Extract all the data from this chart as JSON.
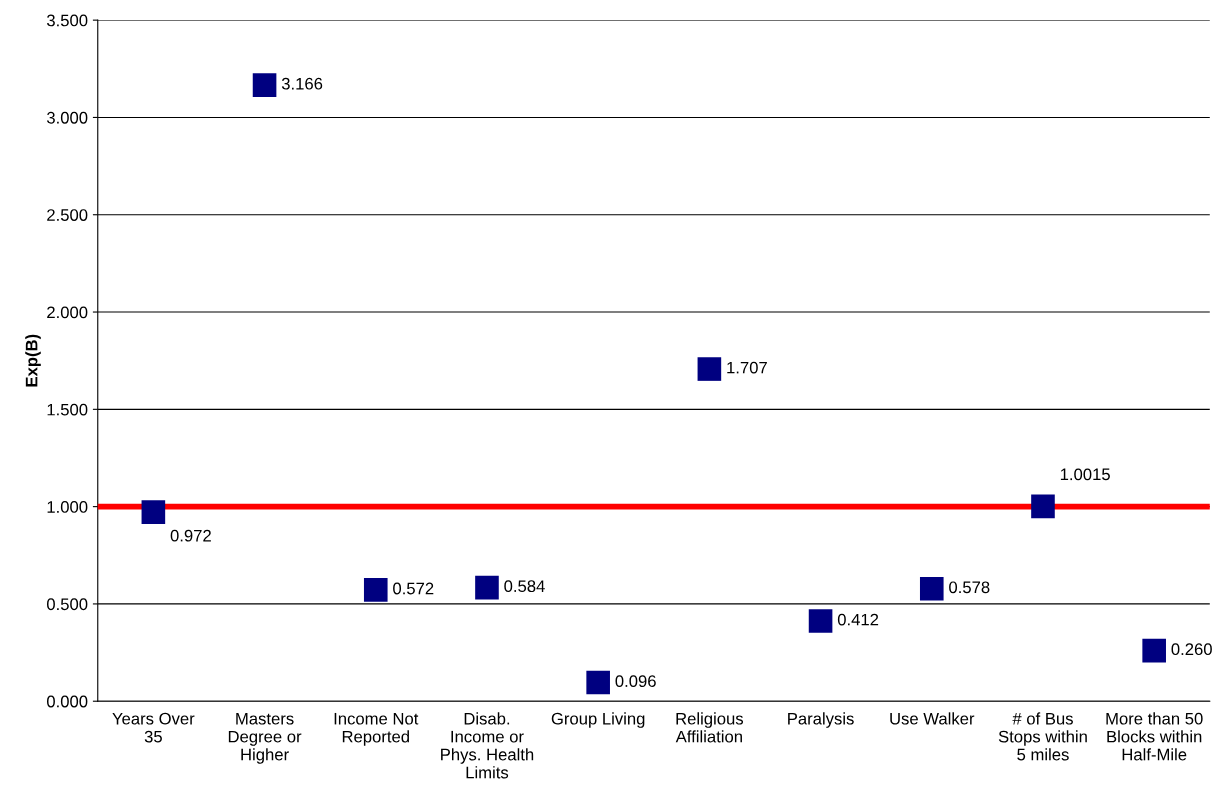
{
  "chart_data": {
    "type": "scatter",
    "ylabel": "Exp(B)",
    "categories": [
      "Years Over\n35",
      "Masters\nDegree or\nHigher",
      "Income Not\nReported",
      "Disab.\nIncome or\nPhys. Health\nLimits",
      "Group Living",
      "Religious\nAffiliation",
      "Paralysis",
      "Use Walker",
      "# of Bus\nStops within\n5 miles",
      "More than 50\nBlocks within\nHalf-Mile"
    ],
    "series": [
      {
        "color": "#000080",
        "values": [
          0.972,
          3.166,
          0.572,
          0.584,
          0.096,
          1.707,
          0.412,
          0.578,
          1.0015,
          0.26
        ],
        "value_labels": [
          "0.972",
          "3.166",
          "0.572",
          "0.584",
          "0.096",
          "1.707",
          "0.412",
          "0.578",
          "1.0015",
          "0.260"
        ]
      }
    ],
    "marker": "square",
    "ylim": [
      0,
      3.5
    ],
    "yticks": [
      {
        "value": 0,
        "label": "0.000"
      },
      {
        "value": 0.5,
        "label": "0.500"
      },
      {
        "value": 1,
        "label": "1.000"
      },
      {
        "value": 1.5,
        "label": "1.500"
      },
      {
        "value": 2,
        "label": "2.000"
      },
      {
        "value": 2.5,
        "label": "2.500"
      },
      {
        "value": 3,
        "label": "3.000"
      },
      {
        "value": 3.5,
        "label": "3.500"
      }
    ],
    "grid": "y",
    "ref_lines": [
      {
        "axis": "y",
        "value": 1,
        "color": "#ff0000",
        "line_style": "solid"
      }
    ]
  }
}
